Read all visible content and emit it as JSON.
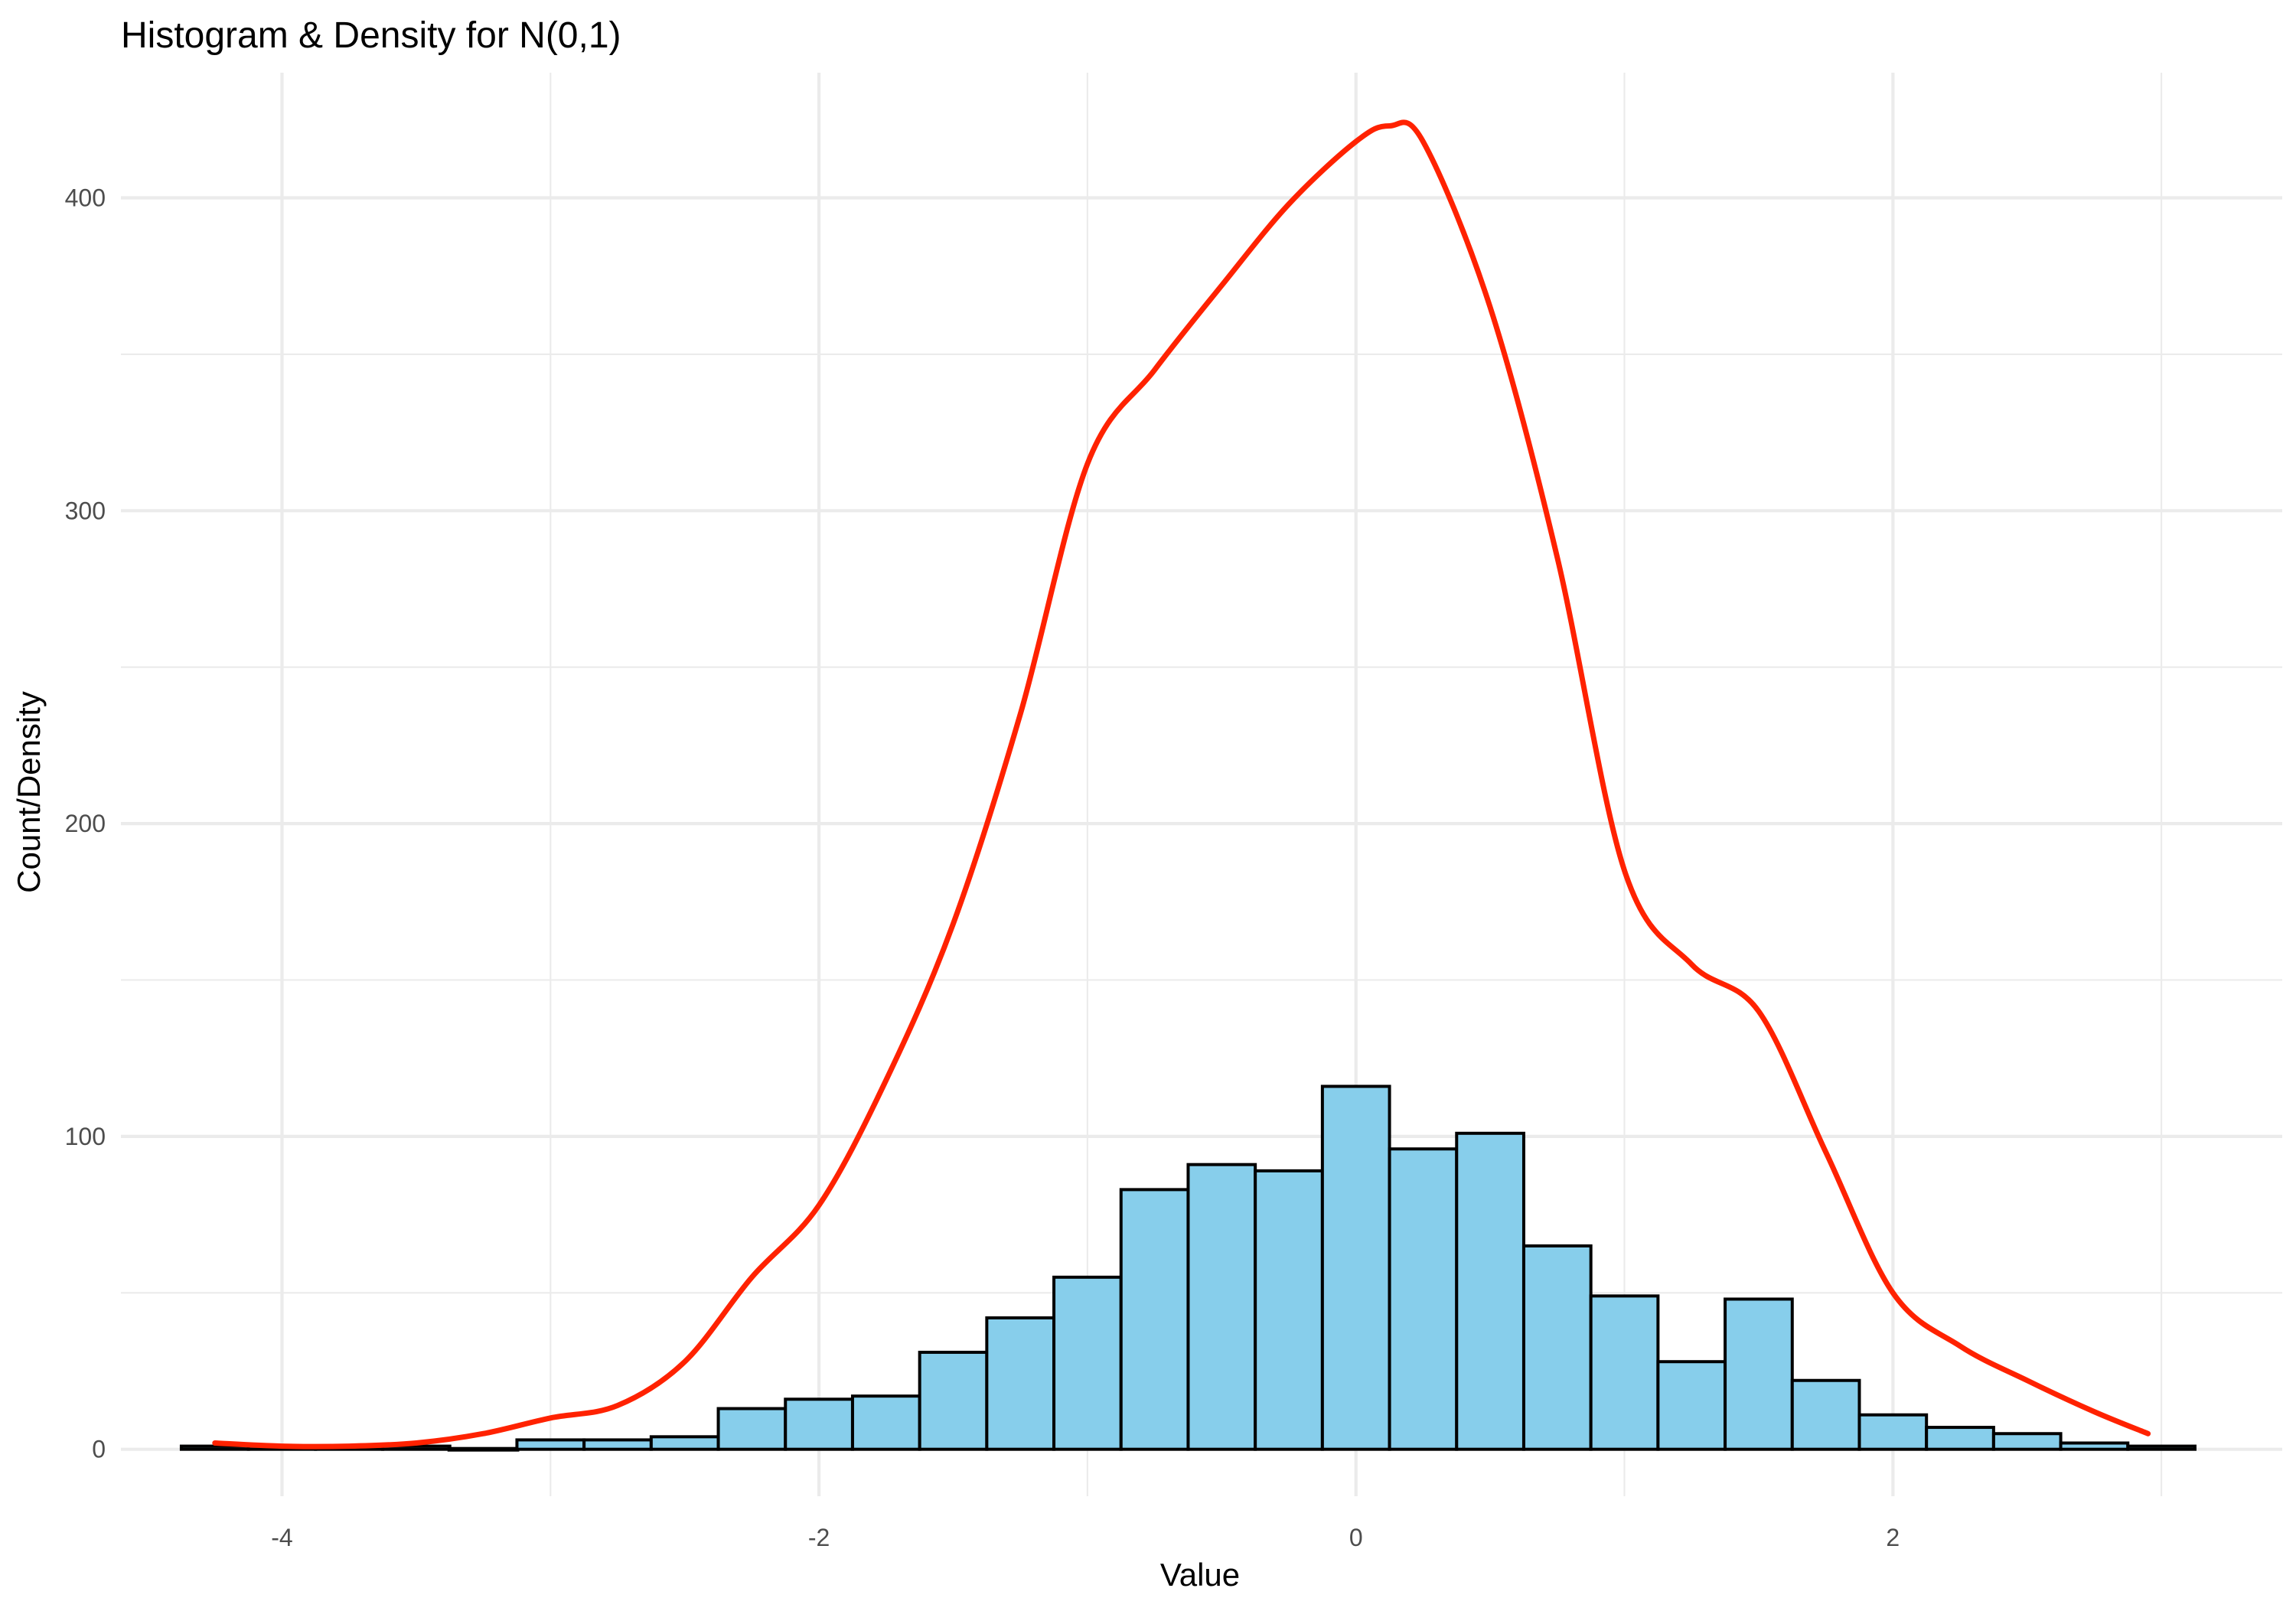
{
  "chart_data": {
    "type": "bar",
    "title": "Histogram & Density for N(0,1)",
    "xlabel": "Value",
    "ylabel": "Count/Density",
    "xlim": [
      -4.6,
      3.45
    ],
    "ylim": [
      -15,
      440
    ],
    "x_ticks": [
      -4,
      -2,
      0,
      2
    ],
    "x_tick_labels": [
      "-4",
      "-2",
      "0",
      "2"
    ],
    "y_ticks": [
      0,
      100,
      200,
      300,
      400
    ],
    "y_tick_labels": [
      "0",
      "100",
      "200",
      "300",
      "400"
    ],
    "grid": true,
    "colors": {
      "bar_fill": "#87ceeb",
      "bar_stroke": "#000000",
      "density_line": "#ff2200",
      "grid": "#ebebeb"
    },
    "histogram": {
      "bin_width": 0.25,
      "bin_starts": [
        -4.375,
        -4.125,
        -3.875,
        -3.625,
        -3.375,
        -3.125,
        -2.875,
        -2.625,
        -2.375,
        -2.125,
        -1.875,
        -1.625,
        -1.375,
        -1.125,
        -0.875,
        -0.625,
        -0.375,
        -0.125,
        0.125,
        0.375,
        0.625,
        0.875,
        1.125,
        1.375,
        1.625,
        1.875,
        2.125,
        2.375,
        2.625,
        2.875
      ],
      "counts": [
        1,
        1,
        1,
        1,
        0,
        3,
        3,
        4,
        13,
        16,
        17,
        31,
        42,
        55,
        83,
        91,
        89,
        116,
        96,
        101,
        65,
        49,
        28,
        48,
        22,
        11,
        7,
        5,
        2,
        1
      ]
    },
    "density_curve": {
      "x": [
        -4.25,
        -4.0,
        -3.75,
        -3.5,
        -3.25,
        -3.0,
        -2.75,
        -2.5,
        -2.25,
        -2.0,
        -1.75,
        -1.5,
        -1.25,
        -1.0,
        -0.75,
        -0.5,
        -0.25,
        0.0,
        0.125,
        0.25,
        0.5,
        0.75,
        1.0,
        1.25,
        1.5,
        1.75,
        2.0,
        2.25,
        2.5,
        2.75,
        2.95
      ],
      "y": [
        2,
        1,
        1,
        2,
        5,
        10,
        14,
        28,
        55,
        78,
        118,
        168,
        235,
        315,
        345,
        372,
        398,
        418,
        423,
        418,
        365,
        285,
        185,
        155,
        140,
        95,
        50,
        33,
        22,
        12,
        5
      ]
    }
  }
}
